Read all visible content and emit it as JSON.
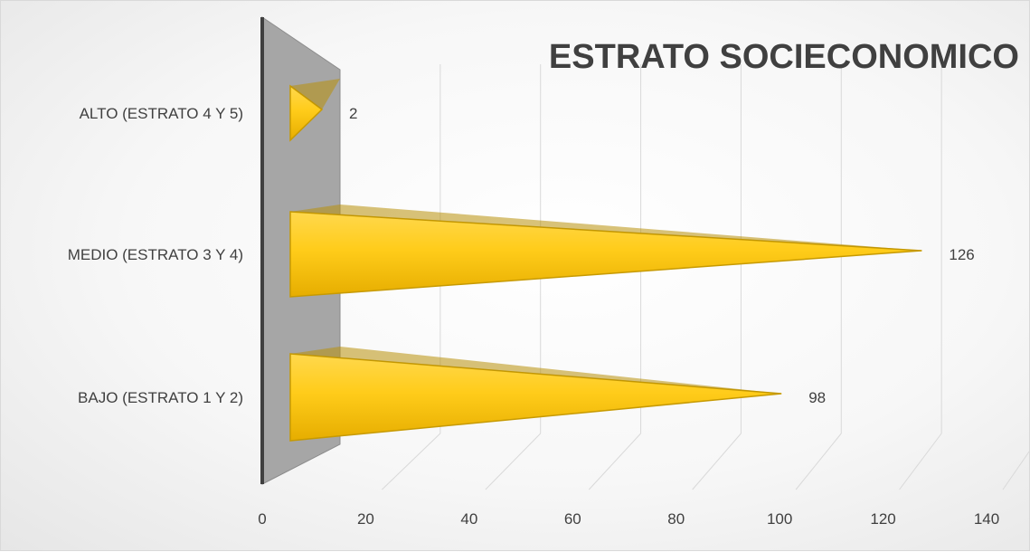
{
  "chart_data": {
    "type": "bar",
    "orientation": "horizontal",
    "style": "3d-cone",
    "title": "ESTRATO SOCIECONOMICO",
    "categories": [
      "BAJO (ESTRATO 1 Y 2)",
      "MEDIO (ESTRATO 3 Y 4)",
      "ALTO (ESTRATO 4 Y 5)"
    ],
    "values": [
      98,
      126,
      2
    ],
    "xlim": [
      0,
      140
    ],
    "xticks": [
      0,
      20,
      40,
      60,
      80,
      100,
      120,
      140
    ],
    "xlabel": "",
    "ylabel": "",
    "grid": true,
    "legend": "none",
    "bar_color": "#FFC000"
  }
}
